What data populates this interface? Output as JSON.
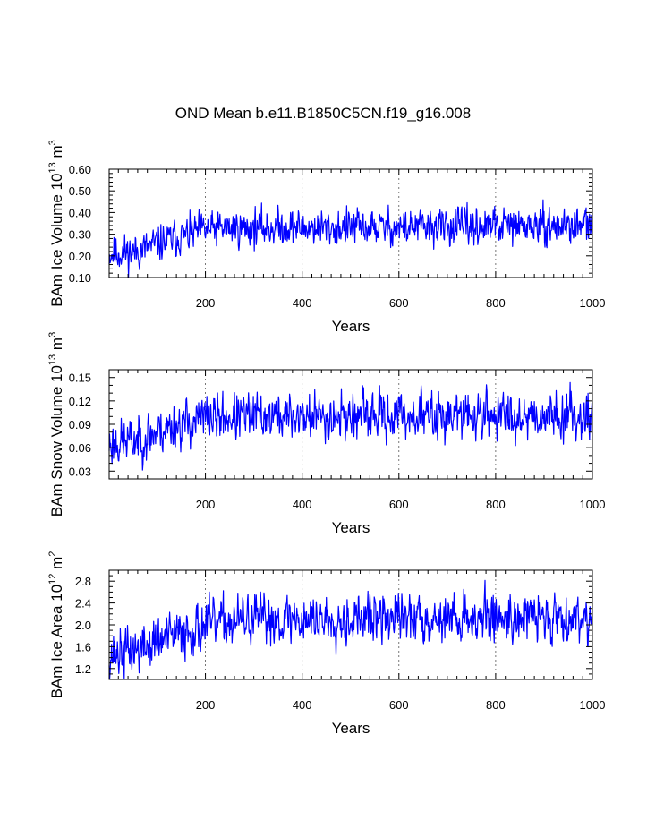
{
  "title": "OND Mean b.e11.B1850C5CN.f19_g16.008",
  "series_color": "#0000ff",
  "chart_data": [
    {
      "type": "line",
      "name": "ice-volume",
      "ylabel_main": "BAm Ice Volume 10",
      "ylabel_exp": "13",
      "ylabel_unit": " m",
      "ylabel_unit_exp": "3",
      "xlabel": "Years",
      "xlim": [
        1,
        1000
      ],
      "ylim": [
        0.1,
        0.6
      ],
      "x_ticks": [
        200,
        400,
        600,
        800,
        1000
      ],
      "y_ticks": [
        0.1,
        0.2,
        0.3,
        0.4,
        0.5,
        0.6
      ],
      "y_tick_labels": [
        "0.10",
        "0.20",
        "0.30",
        "0.40",
        "0.50",
        "0.60"
      ],
      "y_minor_step": 0.02,
      "x_minor_step": 20,
      "grid_x": [
        200,
        400,
        600,
        800
      ],
      "trend": [
        [
          1,
          0.21
        ],
        [
          60,
          0.22
        ],
        [
          120,
          0.27
        ],
        [
          200,
          0.32
        ],
        [
          300,
          0.33
        ],
        [
          600,
          0.33
        ],
        [
          1000,
          0.34
        ]
      ],
      "spread": 0.055,
      "seed": 11
    },
    {
      "type": "line",
      "name": "snow-volume",
      "ylabel_main": "BAm Snow Volume 10",
      "ylabel_exp": "13",
      "ylabel_unit": " m",
      "ylabel_unit_exp": "3",
      "xlabel": "Years",
      "xlim": [
        1,
        1000
      ],
      "ylim": [
        0.02,
        0.16
      ],
      "x_ticks": [
        200,
        400,
        600,
        800,
        1000
      ],
      "y_ticks": [
        0.03,
        0.06,
        0.09,
        0.12,
        0.15
      ],
      "y_tick_labels": [
        "0.03",
        "0.06",
        "0.09",
        "0.12",
        "0.15"
      ],
      "y_minor_step": 0.01,
      "x_minor_step": 20,
      "grid_x": [
        200,
        400,
        600,
        800
      ],
      "trend": [
        [
          1,
          0.065
        ],
        [
          60,
          0.07
        ],
        [
          120,
          0.085
        ],
        [
          200,
          0.098
        ],
        [
          300,
          0.1
        ],
        [
          1000,
          0.102
        ]
      ],
      "spread": 0.02,
      "seed": 23
    },
    {
      "type": "line",
      "name": "ice-area",
      "ylabel_main": "BAm Ice Area 10",
      "ylabel_exp": "12",
      "ylabel_unit": " m",
      "ylabel_unit_exp": "2",
      "xlabel": "Years",
      "xlim": [
        1,
        1000
      ],
      "ylim": [
        1.0,
        3.0
      ],
      "x_ticks": [
        200,
        400,
        600,
        800,
        1000
      ],
      "y_ticks": [
        1.2,
        1.6,
        2.0,
        2.4,
        2.8
      ],
      "y_tick_labels": [
        "1.2",
        "1.6",
        "2.0",
        "2.4",
        "2.8"
      ],
      "y_minor_step": 0.1,
      "x_minor_step": 20,
      "grid_x": [
        200,
        400,
        600,
        800
      ],
      "trend": [
        [
          1,
          1.45
        ],
        [
          60,
          1.55
        ],
        [
          120,
          1.75
        ],
        [
          200,
          2.0
        ],
        [
          300,
          2.1
        ],
        [
          1000,
          2.15
        ]
      ],
      "spread": 0.3,
      "seed": 37
    }
  ]
}
